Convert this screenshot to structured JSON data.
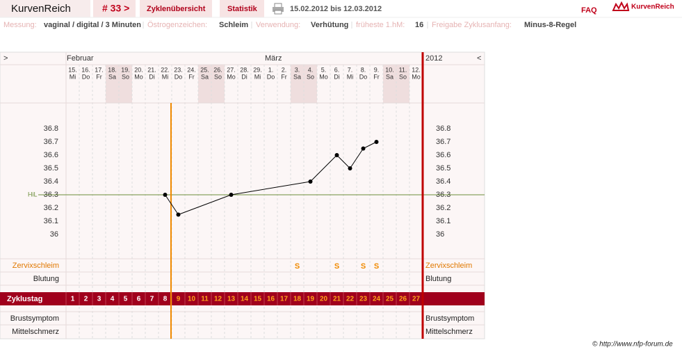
{
  "header": {
    "app": "KurvenReich",
    "cycle_tab": "# 33 >",
    "tabs": [
      "Zyklenübersicht",
      "Statistik"
    ],
    "date_range": "15.02.2012 bis 12.03.2012",
    "faq": "FAQ",
    "logo": "KurvenReich"
  },
  "settings": [
    {
      "label": "Messung:",
      "value": "vaginal / digital / 3 Minuten"
    },
    {
      "label": "Östrogenzeichen:",
      "value": "Schleim"
    },
    {
      "label": "Verwendung:",
      "value": "Verhütung"
    },
    {
      "label": "früheste 1.hM:",
      "value": "16"
    },
    {
      "label": "Freigabe Zyklusanfang:",
      "value": "Minus-8-Regel"
    }
  ],
  "chart_data": {
    "type": "line",
    "nav_prev": ">",
    "nav_next": "<",
    "year": "2012",
    "months": [
      "Februar",
      null,
      null,
      null,
      null,
      null,
      null,
      null,
      null,
      null,
      null,
      null,
      null,
      null,
      null,
      "März",
      null,
      null,
      null,
      null,
      null,
      null,
      null,
      null,
      null,
      null,
      null
    ],
    "categories": [
      "15.",
      "16.",
      "17.",
      "18.",
      "19.",
      "20.",
      "21.",
      "22.",
      "23.",
      "24.",
      "25.",
      "26.",
      "27.",
      "28.",
      "29.",
      "1.",
      "2.",
      "3.",
      "4.",
      "5.",
      "6.",
      "7.",
      "8.",
      "9.",
      "10.",
      "11.",
      "12."
    ],
    "weekdays": [
      "Mi",
      "Do",
      "Fr",
      "Sa",
      "So",
      "Mo",
      "Di",
      "Mi",
      "Do",
      "Fr",
      "Sa",
      "So",
      "Mo",
      "Di",
      "Mi",
      "Do",
      "Fr",
      "Sa",
      "So",
      "Mo",
      "Di",
      "Mi",
      "Do",
      "Fr",
      "Sa",
      "So",
      "Mo"
    ],
    "shaded": [
      false,
      false,
      false,
      true,
      true,
      false,
      false,
      false,
      false,
      false,
      true,
      true,
      false,
      false,
      false,
      false,
      false,
      true,
      true,
      false,
      false,
      false,
      false,
      false,
      true,
      true,
      false
    ],
    "series": [
      {
        "color": "#000000",
        "values": [
          null,
          null,
          null,
          null,
          null,
          null,
          null,
          36.3,
          36.15,
          null,
          null,
          null,
          36.3,
          null,
          null,
          null,
          null,
          null,
          36.4,
          null,
          36.6,
          36.5,
          36.65,
          36.7,
          null,
          null,
          null
        ]
      }
    ],
    "ylim": [
      36,
      36.8
    ],
    "yticks": [
      36,
      36.1,
      36.2,
      36.3,
      36.4,
      36.5,
      36.6,
      36.7,
      36.8
    ],
    "hil": {
      "label": "HiL",
      "value": 36.3,
      "color": "#6b8e3a"
    },
    "cervical_label": "Zervixschleim",
    "cervical": [
      null,
      null,
      null,
      null,
      null,
      null,
      null,
      null,
      null,
      null,
      null,
      null,
      null,
      null,
      null,
      null,
      null,
      "S",
      null,
      null,
      "S",
      null,
      "S",
      "S",
      null,
      null,
      null
    ],
    "bleeding_label": "Blutung",
    "cycle_label": "Zyklustag",
    "cycle_days": [
      1,
      2,
      3,
      4,
      5,
      6,
      7,
      8,
      9,
      10,
      11,
      12,
      13,
      14,
      15,
      16,
      17,
      18,
      19,
      20,
      21,
      22,
      23,
      24,
      25,
      26,
      27
    ],
    "cycle_day_colors": [
      "#ffffff",
      "#ffffff",
      "#ffffff",
      "#ffffff",
      "#ffffff",
      "#ffffff",
      "#ffffff",
      "#ffffff",
      "#ffa31a",
      "#ffa31a",
      "#ffa31a",
      "#ffa31a",
      "#ffa31a",
      "#ffa31a",
      "#ffa31a",
      "#ffa31a",
      "#ffa31a",
      "#ffa31a",
      "#ffa31a",
      "#ffa31a",
      "#ffa31a",
      "#ffa31a",
      "#ffa31a",
      "#ffa31a",
      "#ffa31a",
      "#ffa31a",
      "#ffa31a"
    ],
    "breast_label": "Brustsymptom",
    "pain_label": "Mittelschmerz"
  },
  "footer": "© http://www.nfp-forum.de"
}
